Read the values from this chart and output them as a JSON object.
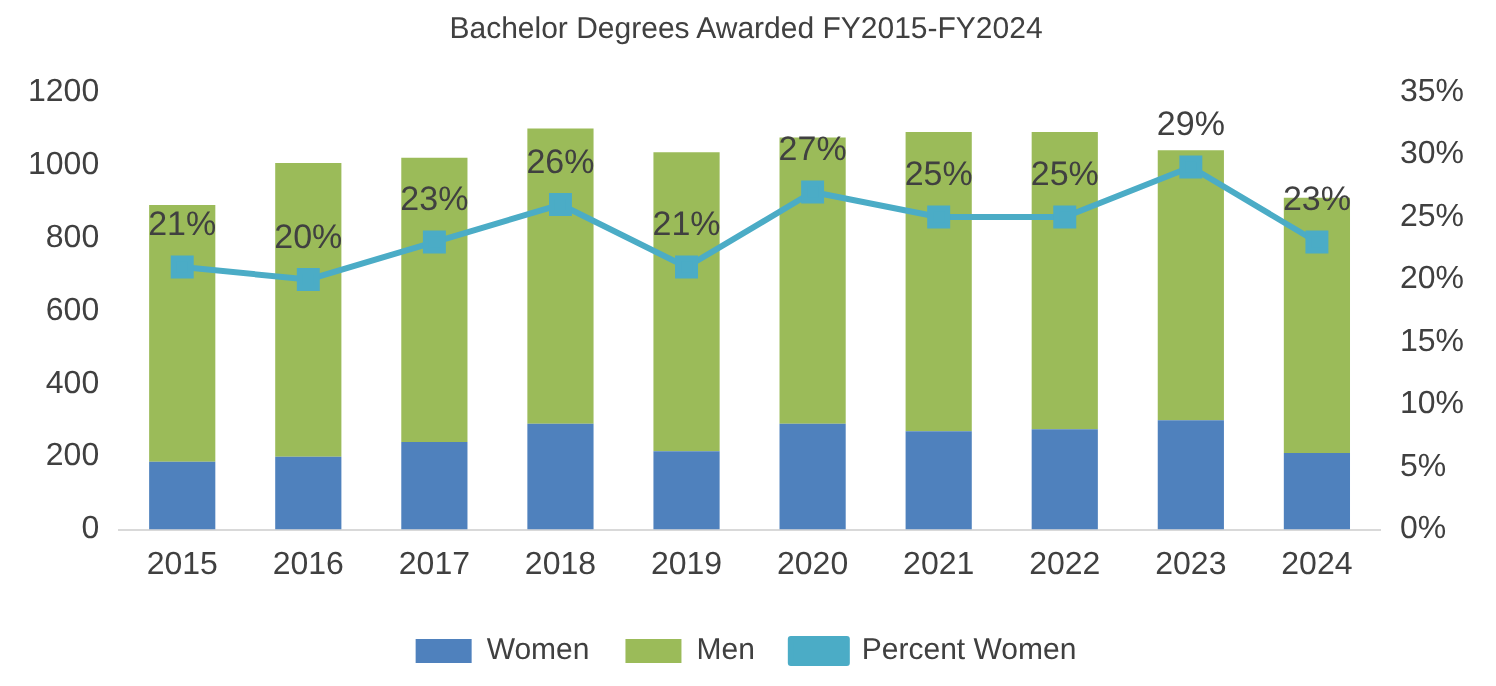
{
  "chart_data": {
    "type": "bar",
    "title": "Bachelor Degrees Awarded FY2015-FY2024",
    "stacked": true,
    "categories": [
      "2015",
      "2016",
      "2017",
      "2018",
      "2019",
      "2020",
      "2021",
      "2022",
      "2023",
      "2024"
    ],
    "series": [
      {
        "name": "Women",
        "color": "#4f81bd",
        "values": [
          186,
          200,
          240,
          290,
          215,
          290,
          270,
          275,
          300,
          210
        ]
      },
      {
        "name": "Men",
        "color": "#9bbb59",
        "values": [
          704,
          805,
          780,
          810,
          820,
          785,
          820,
          815,
          740,
          700
        ]
      },
      {
        "name": "Percent Women",
        "type": "line",
        "axis": "y2",
        "color": "#4bacc6",
        "marker": "square",
        "values": [
          21,
          20,
          23,
          26,
          21,
          27,
          25,
          25,
          29,
          23
        ],
        "value_labels": [
          "21%",
          "20%",
          "23%",
          "26%",
          "21%",
          "27%",
          "25%",
          "25%",
          "29%",
          "23%"
        ]
      }
    ],
    "ylim": [
      0,
      1200
    ],
    "yticks": [
      0,
      200,
      400,
      600,
      800,
      1000,
      1200
    ],
    "y2lim": [
      0,
      35
    ],
    "y2ticks": [
      {
        "value": 0,
        "label": "0%"
      },
      {
        "value": 5,
        "label": "5%"
      },
      {
        "value": 10,
        "label": "10%"
      },
      {
        "value": 15,
        "label": "15%"
      },
      {
        "value": 20,
        "label": "20%"
      },
      {
        "value": 25,
        "label": "25%"
      },
      {
        "value": 30,
        "label": "30%"
      },
      {
        "value": 35,
        "label": "35%"
      }
    ],
    "grid": false,
    "legend": "bottom"
  }
}
